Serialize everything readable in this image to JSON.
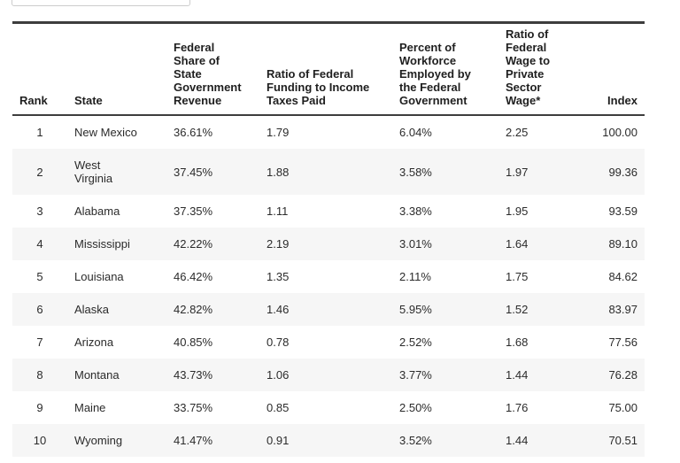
{
  "chart_data": {
    "type": "table",
    "columns": [
      "Rank",
      "State",
      "Federal Share of State Government Revenue",
      "Ratio of Federal Funding to Income Taxes Paid",
      "Percent of Workforce Employed by the Federal Government",
      "Ratio of Federal Wage to Private Sector Wage*",
      "Index"
    ],
    "rows": [
      [
        1,
        "New Mexico",
        "36.61%",
        "1.79",
        "6.04%",
        "2.25",
        "100.00"
      ],
      [
        2,
        "West Virginia",
        "37.45%",
        "1.88",
        "3.58%",
        "1.97",
        "99.36"
      ],
      [
        3,
        "Alabama",
        "37.35%",
        "1.11",
        "3.38%",
        "1.95",
        "93.59"
      ],
      [
        4,
        "Mississippi",
        "42.22%",
        "2.19",
        "3.01%",
        "1.64",
        "89.10"
      ],
      [
        5,
        "Louisiana",
        "46.42%",
        "1.35",
        "2.11%",
        "1.75",
        "84.62"
      ],
      [
        6,
        "Alaska",
        "42.82%",
        "1.46",
        "5.95%",
        "1.52",
        "83.97"
      ],
      [
        7,
        "Arizona",
        "40.85%",
        "0.78",
        "2.52%",
        "1.68",
        "77.56"
      ],
      [
        8,
        "Montana",
        "43.73%",
        "1.06",
        "3.77%",
        "1.44",
        "76.28"
      ],
      [
        9,
        "Maine",
        "33.75%",
        "0.85",
        "2.50%",
        "1.76",
        "75.00"
      ],
      [
        10,
        "Wyoming",
        "41.47%",
        "0.91",
        "3.52%",
        "1.44",
        "70.51"
      ]
    ],
    "layout": {
      "header_position": "top",
      "index_column_align": "right",
      "alternating_rows": true
    }
  },
  "table": {
    "headers_display": [
      "Rank",
      "State",
      "Federal\nShare of\nState\nGovernment\nRevenue",
      "Ratio of Federal\nFunding to Income\nTaxes Paid",
      "Percent of\nWorkforce\nEmployed by\nthe Federal\nGovernment",
      "Ratio of\nFederal\nWage to\nPrivate\nSector\nWage*",
      "Index"
    ],
    "state_display": [
      "New Mexico",
      "West\nVirginia",
      "Alabama",
      "Mississippi",
      "Louisiana",
      "Alaska",
      "Arizona",
      "Montana",
      "Maine",
      "Wyoming"
    ]
  },
  "colors": {
    "rule_dark": "#3d3d3d",
    "row_alt_background": "#f6f6f6",
    "header_text": "#1f1f1f",
    "body_text": "#2b2b2b",
    "clipped_box_border": "#cccccc"
  }
}
